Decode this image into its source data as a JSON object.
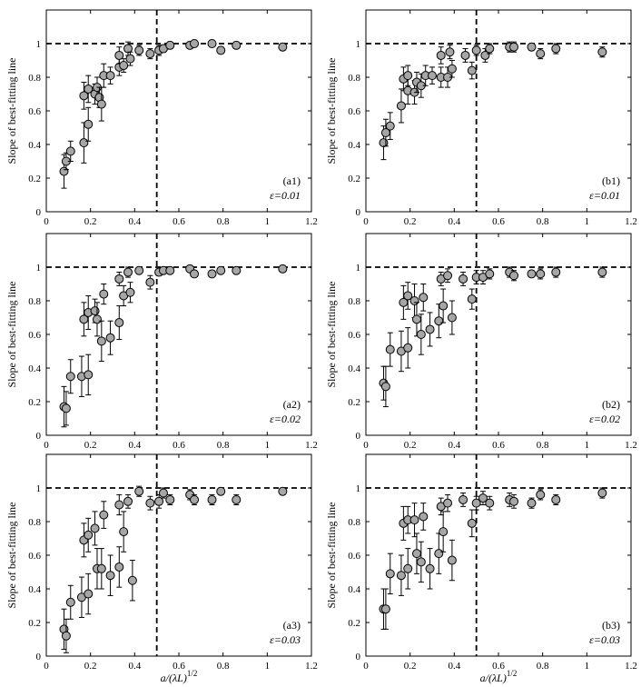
{
  "chart_data": [
    {
      "id": "a1",
      "type": "scatter",
      "tag": "(a1)",
      "eps_label": "ε=0.01",
      "xlabel": "",
      "ylabel": "Slope of best-fitting line",
      "xlim": [
        0,
        1.2
      ],
      "ylim": [
        0,
        1.2
      ],
      "xticks": [
        "0",
        "0.2",
        "0.4",
        "0.6",
        "0.8",
        "1",
        "1.2"
      ],
      "yticks": [
        "0",
        "0.2",
        "0.4",
        "0.6",
        "0.8",
        "1"
      ],
      "hline": 1,
      "vline": 0.5,
      "points": [
        [
          0.08,
          0.24,
          0.1
        ],
        [
          0.09,
          0.3,
          0.05
        ],
        [
          0.11,
          0.36,
          0.06
        ],
        [
          0.17,
          0.41,
          0.12
        ],
        [
          0.17,
          0.69,
          0.08
        ],
        [
          0.19,
          0.52,
          0.1
        ],
        [
          0.19,
          0.73,
          0.08
        ],
        [
          0.22,
          0.7,
          0.06
        ],
        [
          0.23,
          0.74,
          0.06
        ],
        [
          0.24,
          0.68,
          0.06
        ],
        [
          0.25,
          0.64,
          0.1
        ],
        [
          0.26,
          0.81,
          0.07
        ],
        [
          0.29,
          0.81,
          0.05
        ],
        [
          0.33,
          0.86,
          0.05
        ],
        [
          0.33,
          0.93,
          0.05
        ],
        [
          0.35,
          0.87,
          0.04
        ],
        [
          0.37,
          0.97,
          0.04
        ],
        [
          0.38,
          0.91,
          0.04
        ],
        [
          0.42,
          0.96,
          0.03
        ],
        [
          0.47,
          0.94,
          0.03
        ],
        [
          0.51,
          0.96,
          0.03
        ],
        [
          0.53,
          0.97,
          0.02
        ],
        [
          0.56,
          0.99,
          0.02
        ],
        [
          0.65,
          0.99,
          0.02
        ],
        [
          0.67,
          1.0,
          0.02
        ],
        [
          0.75,
          1.0,
          0.02
        ],
        [
          0.79,
          0.96,
          0.02
        ],
        [
          0.86,
          0.99,
          0.02
        ],
        [
          1.07,
          0.98,
          0.02
        ]
      ]
    },
    {
      "id": "b1",
      "type": "scatter",
      "tag": "(b1)",
      "eps_label": "ε=0.01",
      "xlabel": "",
      "ylabel": "Slope of best-fitting line",
      "xlim": [
        0,
        1.2
      ],
      "ylim": [
        0,
        1.2
      ],
      "xticks": [
        "0",
        "0.2",
        "0.4",
        "0.6",
        "0.8",
        "1",
        "1.2"
      ],
      "yticks": [
        "0",
        "0.2",
        "0.4",
        "0.6",
        "0.8",
        "1"
      ],
      "hline": 1,
      "vline": 0.5,
      "points": [
        [
          0.08,
          0.41,
          0.1
        ],
        [
          0.09,
          0.47,
          0.08
        ],
        [
          0.11,
          0.51,
          0.08
        ],
        [
          0.16,
          0.63,
          0.1
        ],
        [
          0.17,
          0.79,
          0.07
        ],
        [
          0.19,
          0.72,
          0.08
        ],
        [
          0.19,
          0.81,
          0.06
        ],
        [
          0.22,
          0.71,
          0.07
        ],
        [
          0.23,
          0.77,
          0.06
        ],
        [
          0.25,
          0.75,
          0.07
        ],
        [
          0.27,
          0.81,
          0.06
        ],
        [
          0.3,
          0.81,
          0.05
        ],
        [
          0.34,
          0.8,
          0.06
        ],
        [
          0.34,
          0.93,
          0.05
        ],
        [
          0.37,
          0.8,
          0.06
        ],
        [
          0.38,
          0.95,
          0.04
        ],
        [
          0.39,
          0.85,
          0.05
        ],
        [
          0.45,
          0.93,
          0.04
        ],
        [
          0.48,
          0.84,
          0.05
        ],
        [
          0.5,
          0.96,
          0.03
        ],
        [
          0.54,
          0.93,
          0.04
        ],
        [
          0.56,
          0.97,
          0.03
        ],
        [
          0.65,
          0.98,
          0.03
        ],
        [
          0.67,
          0.98,
          0.03
        ],
        [
          0.75,
          0.98,
          0.02
        ],
        [
          0.79,
          0.94,
          0.03
        ],
        [
          0.86,
          0.97,
          0.03
        ],
        [
          1.07,
          0.95,
          0.03
        ]
      ]
    },
    {
      "id": "a2",
      "type": "scatter",
      "tag": "(a2)",
      "eps_label": "ε=0.02",
      "xlabel": "",
      "ylabel": "Slope of best-fitting line",
      "xlim": [
        0,
        1.2
      ],
      "ylim": [
        0,
        1.2
      ],
      "xticks": [
        "0",
        "0.2",
        "0.4",
        "0.6",
        "0.8",
        "1",
        "1.2"
      ],
      "yticks": [
        "0",
        "0.2",
        "0.4",
        "0.6",
        "0.8",
        "1"
      ],
      "hline": 1,
      "vline": 0.5,
      "points": [
        [
          0.08,
          0.17,
          0.12
        ],
        [
          0.09,
          0.16,
          0.1
        ],
        [
          0.11,
          0.35,
          0.1
        ],
        [
          0.16,
          0.35,
          0.12
        ],
        [
          0.17,
          0.69,
          0.1
        ],
        [
          0.19,
          0.36,
          0.12
        ],
        [
          0.19,
          0.73,
          0.1
        ],
        [
          0.22,
          0.74,
          0.07
        ],
        [
          0.23,
          0.69,
          0.1
        ],
        [
          0.25,
          0.56,
          0.12
        ],
        [
          0.26,
          0.84,
          0.06
        ],
        [
          0.29,
          0.58,
          0.1
        ],
        [
          0.33,
          0.67,
          0.1
        ],
        [
          0.33,
          0.93,
          0.04
        ],
        [
          0.35,
          0.83,
          0.06
        ],
        [
          0.37,
          0.97,
          0.03
        ],
        [
          0.38,
          0.85,
          0.06
        ],
        [
          0.42,
          0.98,
          0.02
        ],
        [
          0.47,
          0.91,
          0.04
        ],
        [
          0.51,
          0.97,
          0.02
        ],
        [
          0.53,
          0.98,
          0.02
        ],
        [
          0.56,
          0.98,
          0.02
        ],
        [
          0.65,
          0.99,
          0.02
        ],
        [
          0.67,
          0.96,
          0.02
        ],
        [
          0.75,
          0.96,
          0.02
        ],
        [
          0.79,
          0.98,
          0.02
        ],
        [
          0.86,
          0.98,
          0.02
        ],
        [
          1.07,
          0.99,
          0.02
        ]
      ]
    },
    {
      "id": "b2",
      "type": "scatter",
      "tag": "(b2)",
      "eps_label": "ε=0.02",
      "xlabel": "",
      "ylabel": "Slope of best-fitting line",
      "xlim": [
        0,
        1.2
      ],
      "ylim": [
        0,
        1.2
      ],
      "xticks": [
        "0",
        "0.2",
        "0.4",
        "0.6",
        "0.8",
        "1",
        "1.2"
      ],
      "yticks": [
        "0",
        "0.2",
        "0.4",
        "0.6",
        "0.8",
        "1"
      ],
      "hline": 1,
      "vline": 0.5,
      "points": [
        [
          0.08,
          0.31,
          0.1
        ],
        [
          0.09,
          0.29,
          0.12
        ],
        [
          0.11,
          0.51,
          0.1
        ],
        [
          0.16,
          0.5,
          0.12
        ],
        [
          0.17,
          0.79,
          0.1
        ],
        [
          0.19,
          0.52,
          0.12
        ],
        [
          0.19,
          0.83,
          0.08
        ],
        [
          0.22,
          0.8,
          0.1
        ],
        [
          0.23,
          0.69,
          0.1
        ],
        [
          0.25,
          0.6,
          0.12
        ],
        [
          0.26,
          0.82,
          0.08
        ],
        [
          0.29,
          0.63,
          0.1
        ],
        [
          0.33,
          0.68,
          0.1
        ],
        [
          0.34,
          0.93,
          0.04
        ],
        [
          0.35,
          0.77,
          0.1
        ],
        [
          0.37,
          0.95,
          0.04
        ],
        [
          0.39,
          0.7,
          0.1
        ],
        [
          0.44,
          0.93,
          0.04
        ],
        [
          0.48,
          0.81,
          0.06
        ],
        [
          0.5,
          0.94,
          0.04
        ],
        [
          0.53,
          0.94,
          0.04
        ],
        [
          0.56,
          0.96,
          0.03
        ],
        [
          0.65,
          0.97,
          0.03
        ],
        [
          0.67,
          0.95,
          0.03
        ],
        [
          0.75,
          0.96,
          0.02
        ],
        [
          0.79,
          0.96,
          0.03
        ],
        [
          0.86,
          0.97,
          0.03
        ],
        [
          1.07,
          0.97,
          0.03
        ]
      ]
    },
    {
      "id": "a3",
      "type": "scatter",
      "tag": "(a3)",
      "eps_label": "ε=0.03",
      "xlabel": "a/(λL)^1/2",
      "ylabel": "Slope of best-fitting line",
      "xlim": [
        0,
        1.2
      ],
      "ylim": [
        0,
        1.2
      ],
      "xticks": [
        "0",
        "0.2",
        "0.4",
        "0.6",
        "0.8",
        "1",
        "1.2"
      ],
      "yticks": [
        "0",
        "0.2",
        "0.4",
        "0.6",
        "0.8",
        "1"
      ],
      "hline": 1,
      "vline": 0.5,
      "points": [
        [
          0.08,
          0.16,
          0.12
        ],
        [
          0.09,
          0.12,
          0.1
        ],
        [
          0.11,
          0.32,
          0.1
        ],
        [
          0.16,
          0.35,
          0.12
        ],
        [
          0.17,
          0.69,
          0.1
        ],
        [
          0.19,
          0.37,
          0.12
        ],
        [
          0.19,
          0.72,
          0.1
        ],
        [
          0.22,
          0.76,
          0.1
        ],
        [
          0.23,
          0.52,
          0.12
        ],
        [
          0.25,
          0.52,
          0.12
        ],
        [
          0.26,
          0.84,
          0.08
        ],
        [
          0.29,
          0.48,
          0.12
        ],
        [
          0.33,
          0.53,
          0.12
        ],
        [
          0.33,
          0.9,
          0.06
        ],
        [
          0.35,
          0.74,
          0.12
        ],
        [
          0.37,
          0.92,
          0.04
        ],
        [
          0.39,
          0.45,
          0.12
        ],
        [
          0.42,
          0.98,
          0.03
        ],
        [
          0.47,
          0.91,
          0.04
        ],
        [
          0.51,
          0.92,
          0.04
        ],
        [
          0.53,
          0.97,
          0.03
        ],
        [
          0.56,
          0.93,
          0.03
        ],
        [
          0.65,
          0.96,
          0.03
        ],
        [
          0.67,
          0.93,
          0.03
        ],
        [
          0.75,
          0.93,
          0.03
        ],
        [
          0.79,
          0.98,
          0.02
        ],
        [
          0.86,
          0.93,
          0.03
        ],
        [
          1.07,
          0.98,
          0.02
        ]
      ]
    },
    {
      "id": "b3",
      "type": "scatter",
      "tag": "(b3)",
      "eps_label": "ε=0.03",
      "xlabel": "a/(λL)^1/2",
      "ylabel": "Slope of best-fitting line",
      "xlim": [
        0,
        1.2
      ],
      "ylim": [
        0,
        1.2
      ],
      "xticks": [
        "0",
        "0.2",
        "0.4",
        "0.6",
        "0.8",
        "1",
        "1.2"
      ],
      "yticks": [
        "0",
        "0.2",
        "0.4",
        "0.6",
        "0.8",
        "1"
      ],
      "hline": 1,
      "vline": 0.5,
      "points": [
        [
          0.08,
          0.28,
          0.12
        ],
        [
          0.09,
          0.28,
          0.12
        ],
        [
          0.11,
          0.49,
          0.12
        ],
        [
          0.16,
          0.48,
          0.12
        ],
        [
          0.17,
          0.79,
          0.1
        ],
        [
          0.19,
          0.52,
          0.12
        ],
        [
          0.19,
          0.81,
          0.08
        ],
        [
          0.22,
          0.81,
          0.1
        ],
        [
          0.23,
          0.61,
          0.12
        ],
        [
          0.25,
          0.56,
          0.12
        ],
        [
          0.26,
          0.83,
          0.08
        ],
        [
          0.29,
          0.52,
          0.12
        ],
        [
          0.33,
          0.61,
          0.12
        ],
        [
          0.34,
          0.89,
          0.05
        ],
        [
          0.35,
          0.74,
          0.12
        ],
        [
          0.37,
          0.91,
          0.05
        ],
        [
          0.39,
          0.57,
          0.12
        ],
        [
          0.44,
          0.93,
          0.04
        ],
        [
          0.48,
          0.79,
          0.08
        ],
        [
          0.5,
          0.91,
          0.04
        ],
        [
          0.53,
          0.94,
          0.04
        ],
        [
          0.56,
          0.91,
          0.04
        ],
        [
          0.65,
          0.93,
          0.04
        ],
        [
          0.67,
          0.92,
          0.04
        ],
        [
          0.75,
          0.91,
          0.03
        ],
        [
          0.79,
          0.96,
          0.03
        ],
        [
          0.86,
          0.93,
          0.03
        ],
        [
          1.07,
          0.97,
          0.03
        ]
      ]
    }
  ]
}
